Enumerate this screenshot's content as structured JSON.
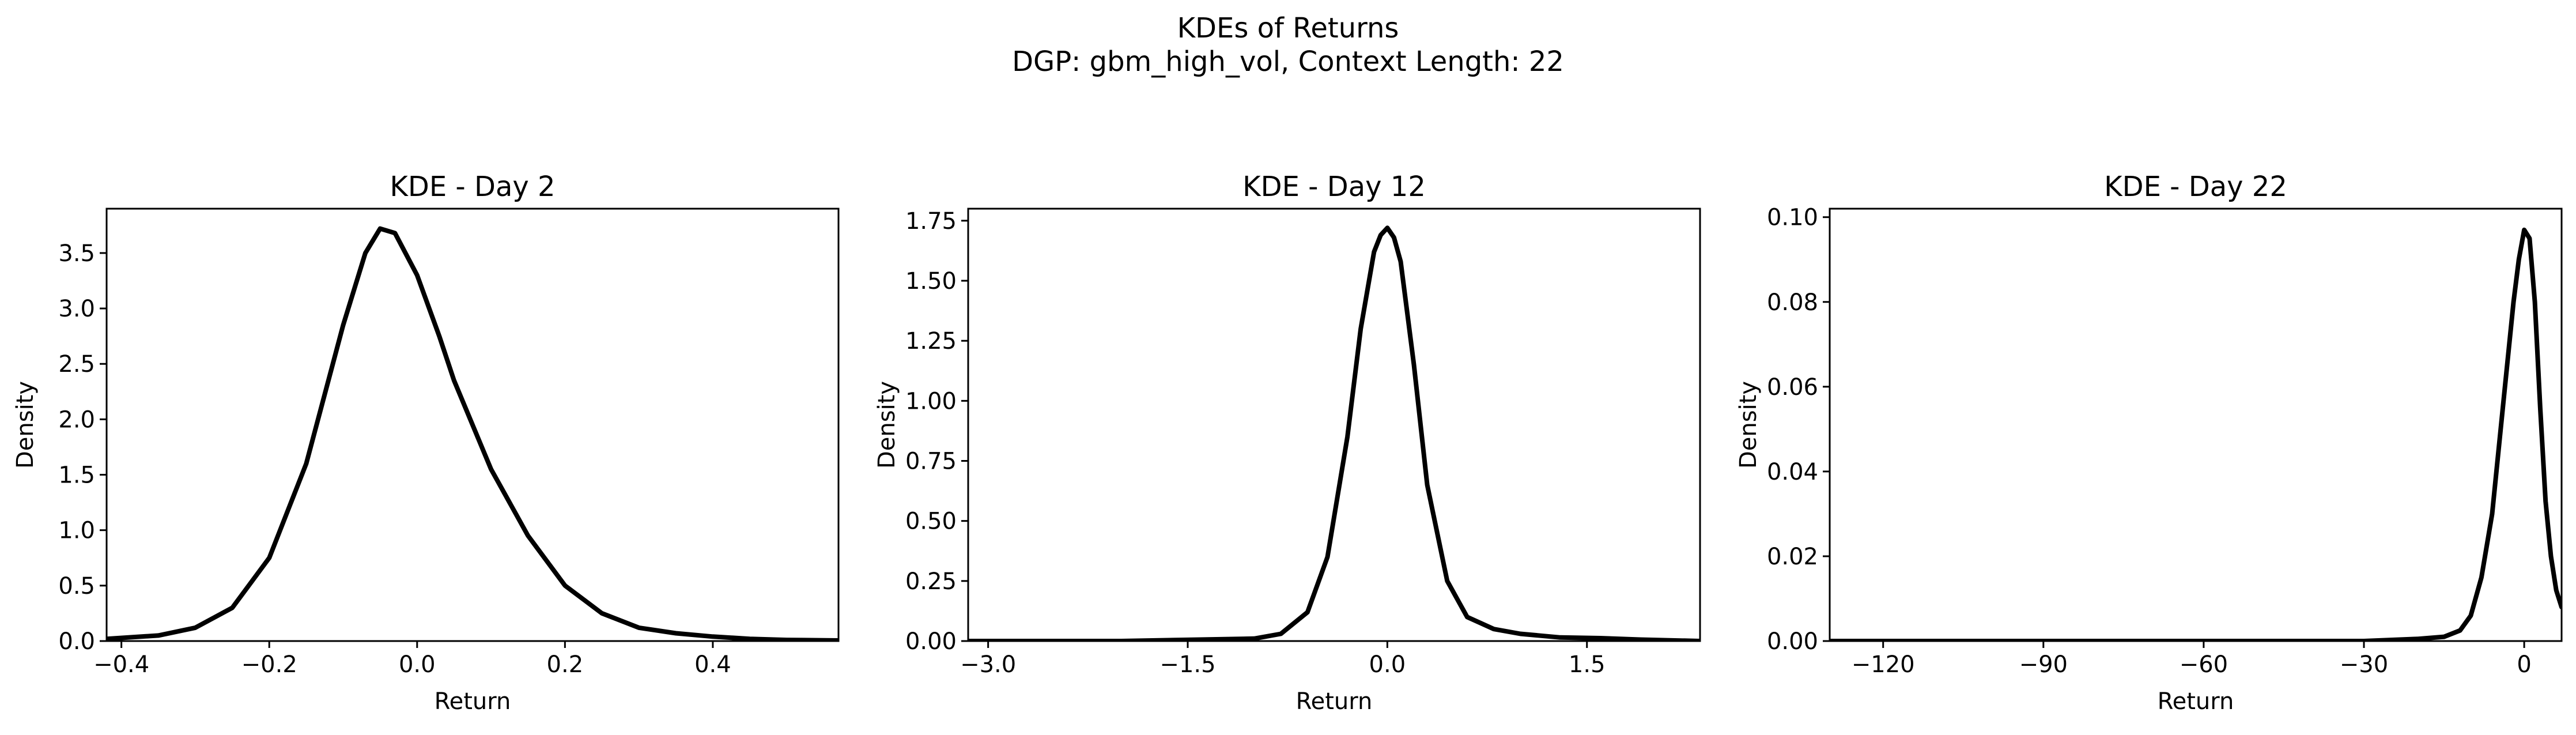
{
  "figure": {
    "title_line1": "KDEs of Returns",
    "title_line2": "DGP: gbm_high_vol, Context Length: 22"
  },
  "chart_data": [
    {
      "type": "line",
      "title": "KDE - Day 2",
      "xlabel": "Return",
      "ylabel": "Density",
      "xlim": [
        -0.42,
        0.57
      ],
      "ylim": [
        0,
        3.9
      ],
      "xticks": [
        -0.4,
        -0.2,
        0.0,
        0.2,
        0.4
      ],
      "xtick_labels": [
        "−0.4",
        "−0.2",
        "0.0",
        "0.2",
        "0.4"
      ],
      "yticks": [
        0,
        0.5,
        1.0,
        1.5,
        2.0,
        2.5,
        3.0,
        3.5
      ],
      "ytick_labels": [
        "0.0",
        "0.5",
        "1.0",
        "1.5",
        "2.0",
        "2.5",
        "3.0",
        "3.5"
      ],
      "color": "#000000",
      "series": [
        {
          "x": [
            -0.42,
            -0.35,
            -0.3,
            -0.25,
            -0.2,
            -0.15,
            -0.1,
            -0.07,
            -0.05,
            -0.03,
            0.0,
            0.03,
            0.05,
            0.1,
            0.15,
            0.2,
            0.25,
            0.3,
            0.35,
            0.4,
            0.45,
            0.5,
            0.57
          ],
          "y": [
            0.02,
            0.05,
            0.12,
            0.3,
            0.75,
            1.6,
            2.85,
            3.5,
            3.72,
            3.68,
            3.3,
            2.75,
            2.35,
            1.55,
            0.95,
            0.5,
            0.25,
            0.12,
            0.07,
            0.04,
            0.02,
            0.01,
            0.005
          ]
        }
      ]
    },
    {
      "type": "line",
      "title": "KDE - Day 12",
      "xlabel": "Return",
      "ylabel": "Density",
      "xlim": [
        -3.15,
        2.35
      ],
      "ylim": [
        0,
        1.8
      ],
      "xticks": [
        -3.0,
        -1.5,
        0.0,
        1.5
      ],
      "xtick_labels": [
        "−3.0",
        "−1.5",
        "0.0",
        "1.5"
      ],
      "yticks": [
        0,
        0.25,
        0.5,
        0.75,
        1.0,
        1.25,
        1.5,
        1.75
      ],
      "ytick_labels": [
        "0.00",
        "0.25",
        "0.50",
        "0.75",
        "1.00",
        "1.25",
        "1.50",
        "1.75"
      ],
      "color": "#000000",
      "series": [
        {
          "x": [
            -3.15,
            -2.5,
            -2.0,
            -1.5,
            -1.0,
            -0.8,
            -0.6,
            -0.45,
            -0.3,
            -0.2,
            -0.1,
            -0.05,
            0.0,
            0.05,
            0.1,
            0.2,
            0.3,
            0.45,
            0.6,
            0.8,
            1.0,
            1.3,
            1.6,
            1.9,
            2.35
          ],
          "y": [
            0.0,
            0.0,
            0.0,
            0.005,
            0.01,
            0.03,
            0.12,
            0.35,
            0.85,
            1.3,
            1.62,
            1.69,
            1.72,
            1.68,
            1.58,
            1.15,
            0.65,
            0.25,
            0.1,
            0.05,
            0.03,
            0.015,
            0.012,
            0.006,
            0.0
          ]
        }
      ]
    },
    {
      "type": "line",
      "title": "KDE - Day 22",
      "xlabel": "Return",
      "ylabel": "Density",
      "xlim": [
        -130.0,
        7.0
      ],
      "ylim": [
        0,
        0.102
      ],
      "xticks": [
        -120,
        -90,
        -60,
        -30,
        0
      ],
      "xtick_labels": [
        "−120",
        "−90",
        "−60",
        "−30",
        "0"
      ],
      "yticks": [
        0,
        0.02,
        0.04,
        0.06,
        0.08,
        0.1
      ],
      "ytick_labels": [
        "0.00",
        "0.02",
        "0.04",
        "0.06",
        "0.08",
        "0.10"
      ],
      "color": "#000000",
      "series": [
        {
          "x": [
            -130,
            -100,
            -60,
            -30,
            -20,
            -15,
            -12,
            -10,
            -8,
            -6,
            -4,
            -2,
            -1,
            0,
            1,
            2,
            3,
            4,
            5,
            6,
            7
          ],
          "y": [
            0.0,
            0.0,
            0.0,
            0.0,
            0.0005,
            0.001,
            0.0025,
            0.006,
            0.015,
            0.03,
            0.055,
            0.08,
            0.09,
            0.097,
            0.095,
            0.08,
            0.055,
            0.033,
            0.02,
            0.012,
            0.008
          ]
        }
      ]
    }
  ]
}
